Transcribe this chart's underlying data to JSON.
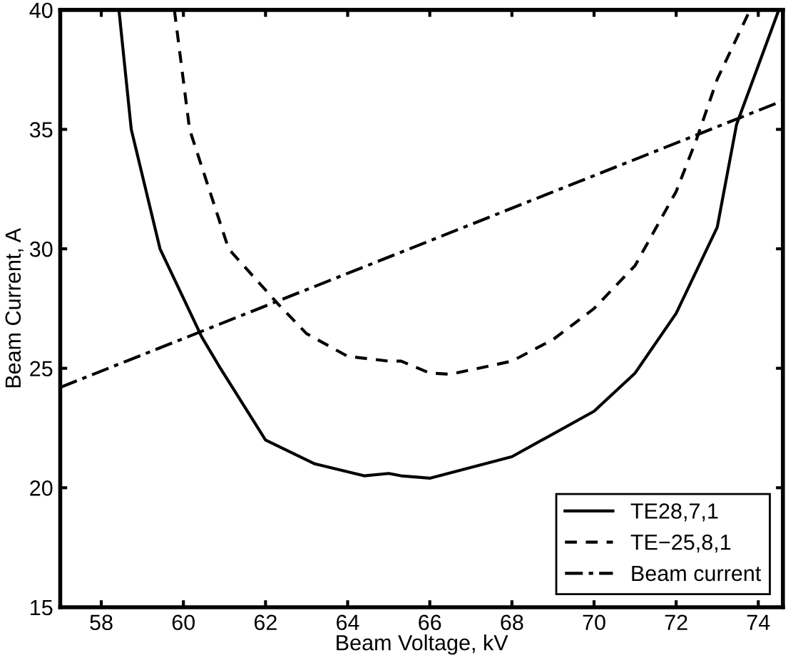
{
  "chart_data": {
    "type": "line",
    "xlabel": "Beam Voltage, kV",
    "ylabel": "Beam Current, A",
    "xlim": [
      57,
      74.6
    ],
    "ylim": [
      15,
      40
    ],
    "xticks": [
      58,
      60,
      62,
      64,
      66,
      68,
      70,
      72,
      74
    ],
    "yticks": [
      15,
      20,
      25,
      30,
      35,
      40
    ],
    "grid": false,
    "legend": "bottom right",
    "series": [
      {
        "name": "TE28,7,1",
        "color": "#000000",
        "line_style": "solid",
        "x": [
          58.43,
          58.73,
          59.43,
          60.45,
          60.9,
          62.0,
          63.2,
          64.4,
          65.0,
          65.3,
          66.0,
          68.0,
          70.0,
          71.0,
          72.0,
          73.0,
          73.47,
          74.5
        ],
        "values": [
          40,
          35,
          30,
          26.3,
          25,
          22,
          21,
          20.5,
          20.6,
          20.5,
          20.4,
          21.3,
          23.2,
          24.8,
          27.3,
          30.9,
          35.2,
          40
        ]
      },
      {
        "name": "TE−25,8,1",
        "color": "#000000",
        "line_style": "dashed",
        "x": [
          59.78,
          60.15,
          61.1,
          62.3,
          63.0,
          64.0,
          65.0,
          65.3,
          66.0,
          66.5,
          68.0,
          69.0,
          70.0,
          71.0,
          72.0,
          72.5,
          73.0,
          73.8
        ],
        "values": [
          40,
          35,
          30,
          27.7,
          26.45,
          25.5,
          25.3,
          25.3,
          24.8,
          24.75,
          25.3,
          26.2,
          27.5,
          29.3,
          32.4,
          34.6,
          37.1,
          40
        ]
      },
      {
        "name": "Beam current",
        "color": "#000000",
        "line_style": "dashdot",
        "x": [
          57,
          74.6
        ],
        "values": [
          24.2,
          36.2
        ]
      }
    ]
  }
}
